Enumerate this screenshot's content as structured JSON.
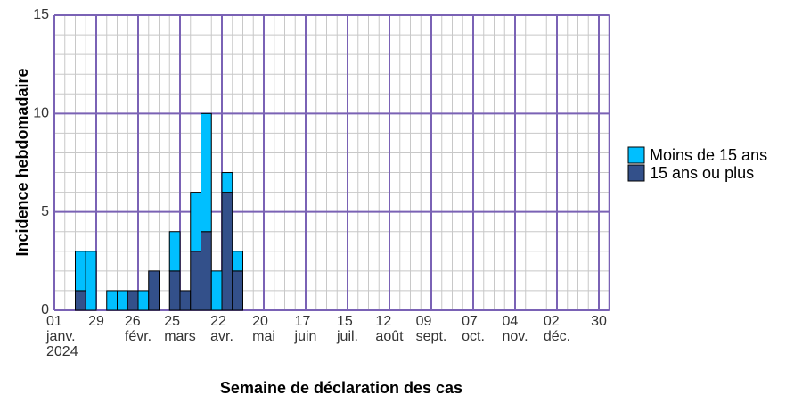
{
  "chart_data": {
    "type": "stacked_bar",
    "x_label": "Semaine de déclaration des cas",
    "y_label": "Incidence hebdomadaire",
    "x": [
      "2024-01-15",
      "2024-01-22",
      "2024-01-29",
      "2024-02-05",
      "2024-02-12",
      "2024-02-19",
      "2024-02-26",
      "2024-03-04",
      "2024-03-11",
      "2024-03-18",
      "2024-03-25",
      "2024-04-01",
      "2024-04-08",
      "2024-04-15",
      "2024-04-22",
      "2024-04-29"
    ],
    "series": [
      {
        "name": "Moins de 15 ans",
        "color": "#00bfff",
        "values": [
          2,
          3,
          0,
          1,
          1,
          0,
          1,
          0,
          0,
          2,
          0,
          3,
          6,
          2,
          1,
          1
        ]
      },
      {
        "name": "15 ans ou plus",
        "color": "#33508a",
        "values": [
          1,
          0,
          0,
          0,
          0,
          1,
          0,
          2,
          0,
          2,
          1,
          3,
          4,
          0,
          6,
          2
        ]
      }
    ],
    "xlim": [
      "2024-01-01",
      "2024-12-30"
    ],
    "xticks": [
      {
        "value": "2024-01-01",
        "label": "01\njanv.\n2024"
      },
      {
        "value": "2024-01-29",
        "label": "29"
      },
      {
        "value": "2024-02-26",
        "label": "26\nfévr."
      },
      {
        "value": "2024-03-25",
        "label": "25\nmars"
      },
      {
        "value": "2024-04-22",
        "label": "22\navr."
      },
      {
        "value": "2024-05-20",
        "label": "20\nmai"
      },
      {
        "value": "2024-06-17",
        "label": "17\njuin"
      },
      {
        "value": "2024-07-15",
        "label": "15\njuil."
      },
      {
        "value": "2024-08-12",
        "label": "12\naoût"
      },
      {
        "value": "2024-09-09",
        "label": "09\nsept."
      },
      {
        "value": "2024-10-07",
        "label": "07\noct."
      },
      {
        "value": "2024-11-04",
        "label": "04\nnov."
      },
      {
        "value": "2024-12-02",
        "label": "02\ndéc."
      },
      {
        "value": "2024-12-30",
        "label": "30"
      }
    ],
    "ylim": [
      0,
      15
    ],
    "yticks": [
      0,
      5,
      10,
      15
    ],
    "grid": true,
    "minor_grid": true,
    "legend": "right"
  }
}
